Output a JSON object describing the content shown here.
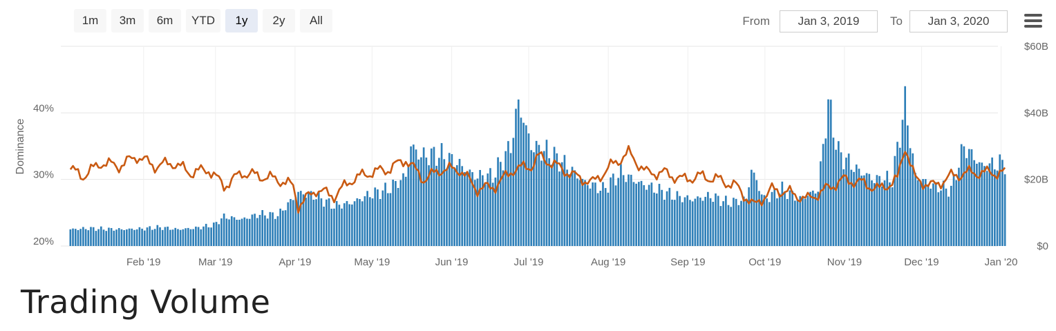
{
  "range_buttons": [
    {
      "label": "1m",
      "active": false
    },
    {
      "label": "3m",
      "active": false
    },
    {
      "label": "6m",
      "active": false
    },
    {
      "label": "YTD",
      "active": false
    },
    {
      "label": "1y",
      "active": true
    },
    {
      "label": "2y",
      "active": false
    },
    {
      "label": "All",
      "active": false
    }
  ],
  "date_range": {
    "from_label": "From",
    "from_value": "Jan 3, 2019",
    "to_label": "To",
    "to_value": "Jan 3, 2020"
  },
  "menu_icon": "hamburger-menu-icon",
  "section_title": "Trading Volume",
  "chart_data": {
    "type": "bar+line",
    "x_start": "2019-01-03",
    "x_end": "2020-01-03",
    "x_ticks": [
      {
        "date": "2019-02-01",
        "label": "Feb '19"
      },
      {
        "date": "2019-03-01",
        "label": "Mar '19"
      },
      {
        "date": "2019-04-01",
        "label": "Apr '19"
      },
      {
        "date": "2019-05-01",
        "label": "May '19"
      },
      {
        "date": "2019-06-01",
        "label": "Jun '19"
      },
      {
        "date": "2019-07-01",
        "label": "Jul '19"
      },
      {
        "date": "2019-08-01",
        "label": "Aug '19"
      },
      {
        "date": "2019-09-01",
        "label": "Sep '19"
      },
      {
        "date": "2019-10-01",
        "label": "Oct '19"
      },
      {
        "date": "2019-11-01",
        "label": "Nov '19"
      },
      {
        "date": "2019-12-01",
        "label": "Dec '19"
      },
      {
        "date": "2020-01-01",
        "label": "Jan '20"
      }
    ],
    "left_axis": {
      "label": "Dominance",
      "min": 20,
      "max": 50,
      "ticks": [
        {
          "value": 20,
          "label": "20%"
        },
        {
          "value": 30,
          "label": "30%"
        },
        {
          "value": 40,
          "label": "40%"
        }
      ]
    },
    "right_axis": {
      "min": 0,
      "max": 60,
      "ticks": [
        {
          "value": 0,
          "label": "$0"
        },
        {
          "value": 20,
          "label": "$20B"
        },
        {
          "value": 40,
          "label": "$40B"
        },
        {
          "value": 60,
          "label": "$60B"
        }
      ]
    },
    "colors": {
      "bars": "#2e7fb8",
      "line": "#c95a12",
      "grid": "#e6e6e6"
    },
    "series": [
      {
        "type": "bar",
        "axis": "right",
        "unit": "$B",
        "points": [
          [
            "2019-01-03",
            5.0
          ],
          [
            "2019-01-10",
            5.3
          ],
          [
            "2019-01-17",
            5.1
          ],
          [
            "2019-01-24",
            5.0
          ],
          [
            "2019-01-31",
            5.2
          ],
          [
            "2019-02-07",
            5.6
          ],
          [
            "2019-02-14",
            5.0
          ],
          [
            "2019-02-21",
            5.4
          ],
          [
            "2019-02-28",
            6.3
          ],
          [
            "2019-03-04",
            8.8
          ],
          [
            "2019-03-11",
            8.0
          ],
          [
            "2019-03-18",
            9.6
          ],
          [
            "2019-03-25",
            9.2
          ],
          [
            "2019-04-02",
            16.0
          ],
          [
            "2019-04-09",
            15.0
          ],
          [
            "2019-04-16",
            12.0
          ],
          [
            "2019-04-23",
            13.0
          ],
          [
            "2019-04-30",
            15.5
          ],
          [
            "2019-05-07",
            17.0
          ],
          [
            "2019-05-14",
            21.0
          ],
          [
            "2019-05-16",
            30.0
          ],
          [
            "2019-05-20",
            27.0
          ],
          [
            "2019-05-27",
            27.5
          ],
          [
            "2019-06-03",
            25.0
          ],
          [
            "2019-06-10",
            21.0
          ],
          [
            "2019-06-17",
            21.0
          ],
          [
            "2019-06-24",
            30.0
          ],
          [
            "2019-06-27",
            43.0
          ],
          [
            "2019-07-02",
            30.0
          ],
          [
            "2019-07-09",
            28.0
          ],
          [
            "2019-07-16",
            24.0
          ],
          [
            "2019-07-23",
            19.0
          ],
          [
            "2019-07-30",
            17.0
          ],
          [
            "2019-08-06",
            22.0
          ],
          [
            "2019-08-13",
            19.0
          ],
          [
            "2019-08-20",
            17.0
          ],
          [
            "2019-08-27",
            15.0
          ],
          [
            "2019-09-03",
            14.0
          ],
          [
            "2019-09-10",
            15.0
          ],
          [
            "2019-09-17",
            13.0
          ],
          [
            "2019-09-24",
            14.0
          ],
          [
            "2019-09-26",
            23.0
          ],
          [
            "2019-10-01",
            14.0
          ],
          [
            "2019-10-08",
            17.0
          ],
          [
            "2019-10-15",
            14.0
          ],
          [
            "2019-10-22",
            17.0
          ],
          [
            "2019-10-26",
            43.0
          ],
          [
            "2019-10-30",
            28.0
          ],
          [
            "2019-11-06",
            23.0
          ],
          [
            "2019-11-13",
            20.0
          ],
          [
            "2019-11-20",
            20.0
          ],
          [
            "2019-11-25",
            43.0
          ],
          [
            "2019-11-29",
            21.0
          ],
          [
            "2019-12-06",
            18.0
          ],
          [
            "2019-12-13",
            17.0
          ],
          [
            "2019-12-18",
            30.0
          ],
          [
            "2019-12-25",
            24.0
          ],
          [
            "2020-01-03",
            25.0
          ]
        ]
      },
      {
        "type": "line",
        "axis": "left",
        "unit": "%",
        "points": [
          [
            "2019-01-03",
            31.5
          ],
          [
            "2019-01-08",
            30.5
          ],
          [
            "2019-01-15",
            32.5
          ],
          [
            "2019-01-22",
            32.0
          ],
          [
            "2019-01-29",
            33.5
          ],
          [
            "2019-02-05",
            32.0
          ],
          [
            "2019-02-12",
            32.5
          ],
          [
            "2019-02-19",
            31.0
          ],
          [
            "2019-02-26",
            31.5
          ],
          [
            "2019-03-04",
            29.0
          ],
          [
            "2019-03-11",
            31.0
          ],
          [
            "2019-03-18",
            30.5
          ],
          [
            "2019-03-25",
            30.0
          ],
          [
            "2019-03-31",
            29.0
          ],
          [
            "2019-04-02",
            26.0
          ],
          [
            "2019-04-09",
            28.5
          ],
          [
            "2019-04-16",
            27.5
          ],
          [
            "2019-04-23",
            30.0
          ],
          [
            "2019-04-30",
            31.0
          ],
          [
            "2019-05-07",
            31.5
          ],
          [
            "2019-05-14",
            33.0
          ],
          [
            "2019-05-21",
            30.0
          ],
          [
            "2019-05-28",
            31.5
          ],
          [
            "2019-06-04",
            31.5
          ],
          [
            "2019-06-11",
            28.5
          ],
          [
            "2019-06-18",
            29.0
          ],
          [
            "2019-06-25",
            31.5
          ],
          [
            "2019-07-02",
            32.0
          ],
          [
            "2019-07-05",
            33.5
          ],
          [
            "2019-07-12",
            32.0
          ],
          [
            "2019-07-19",
            30.5
          ],
          [
            "2019-07-26",
            29.5
          ],
          [
            "2019-08-02",
            32.0
          ],
          [
            "2019-08-09",
            34.0
          ],
          [
            "2019-08-16",
            31.0
          ],
          [
            "2019-08-23",
            31.0
          ],
          [
            "2019-08-30",
            30.0
          ],
          [
            "2019-09-06",
            30.5
          ],
          [
            "2019-09-13",
            30.0
          ],
          [
            "2019-09-20",
            29.0
          ],
          [
            "2019-09-27",
            26.0
          ],
          [
            "2019-10-04",
            28.5
          ],
          [
            "2019-10-11",
            28.0
          ],
          [
            "2019-10-18",
            27.0
          ],
          [
            "2019-10-25",
            28.5
          ],
          [
            "2019-11-01",
            30.0
          ],
          [
            "2019-11-08",
            29.5
          ],
          [
            "2019-11-15",
            28.5
          ],
          [
            "2019-11-22",
            30.0
          ],
          [
            "2019-11-25",
            35.0
          ],
          [
            "2019-11-29",
            30.0
          ],
          [
            "2019-12-06",
            29.0
          ],
          [
            "2019-12-13",
            30.5
          ],
          [
            "2019-12-20",
            31.0
          ],
          [
            "2019-12-27",
            31.0
          ],
          [
            "2020-01-03",
            31.0
          ]
        ]
      }
    ]
  }
}
